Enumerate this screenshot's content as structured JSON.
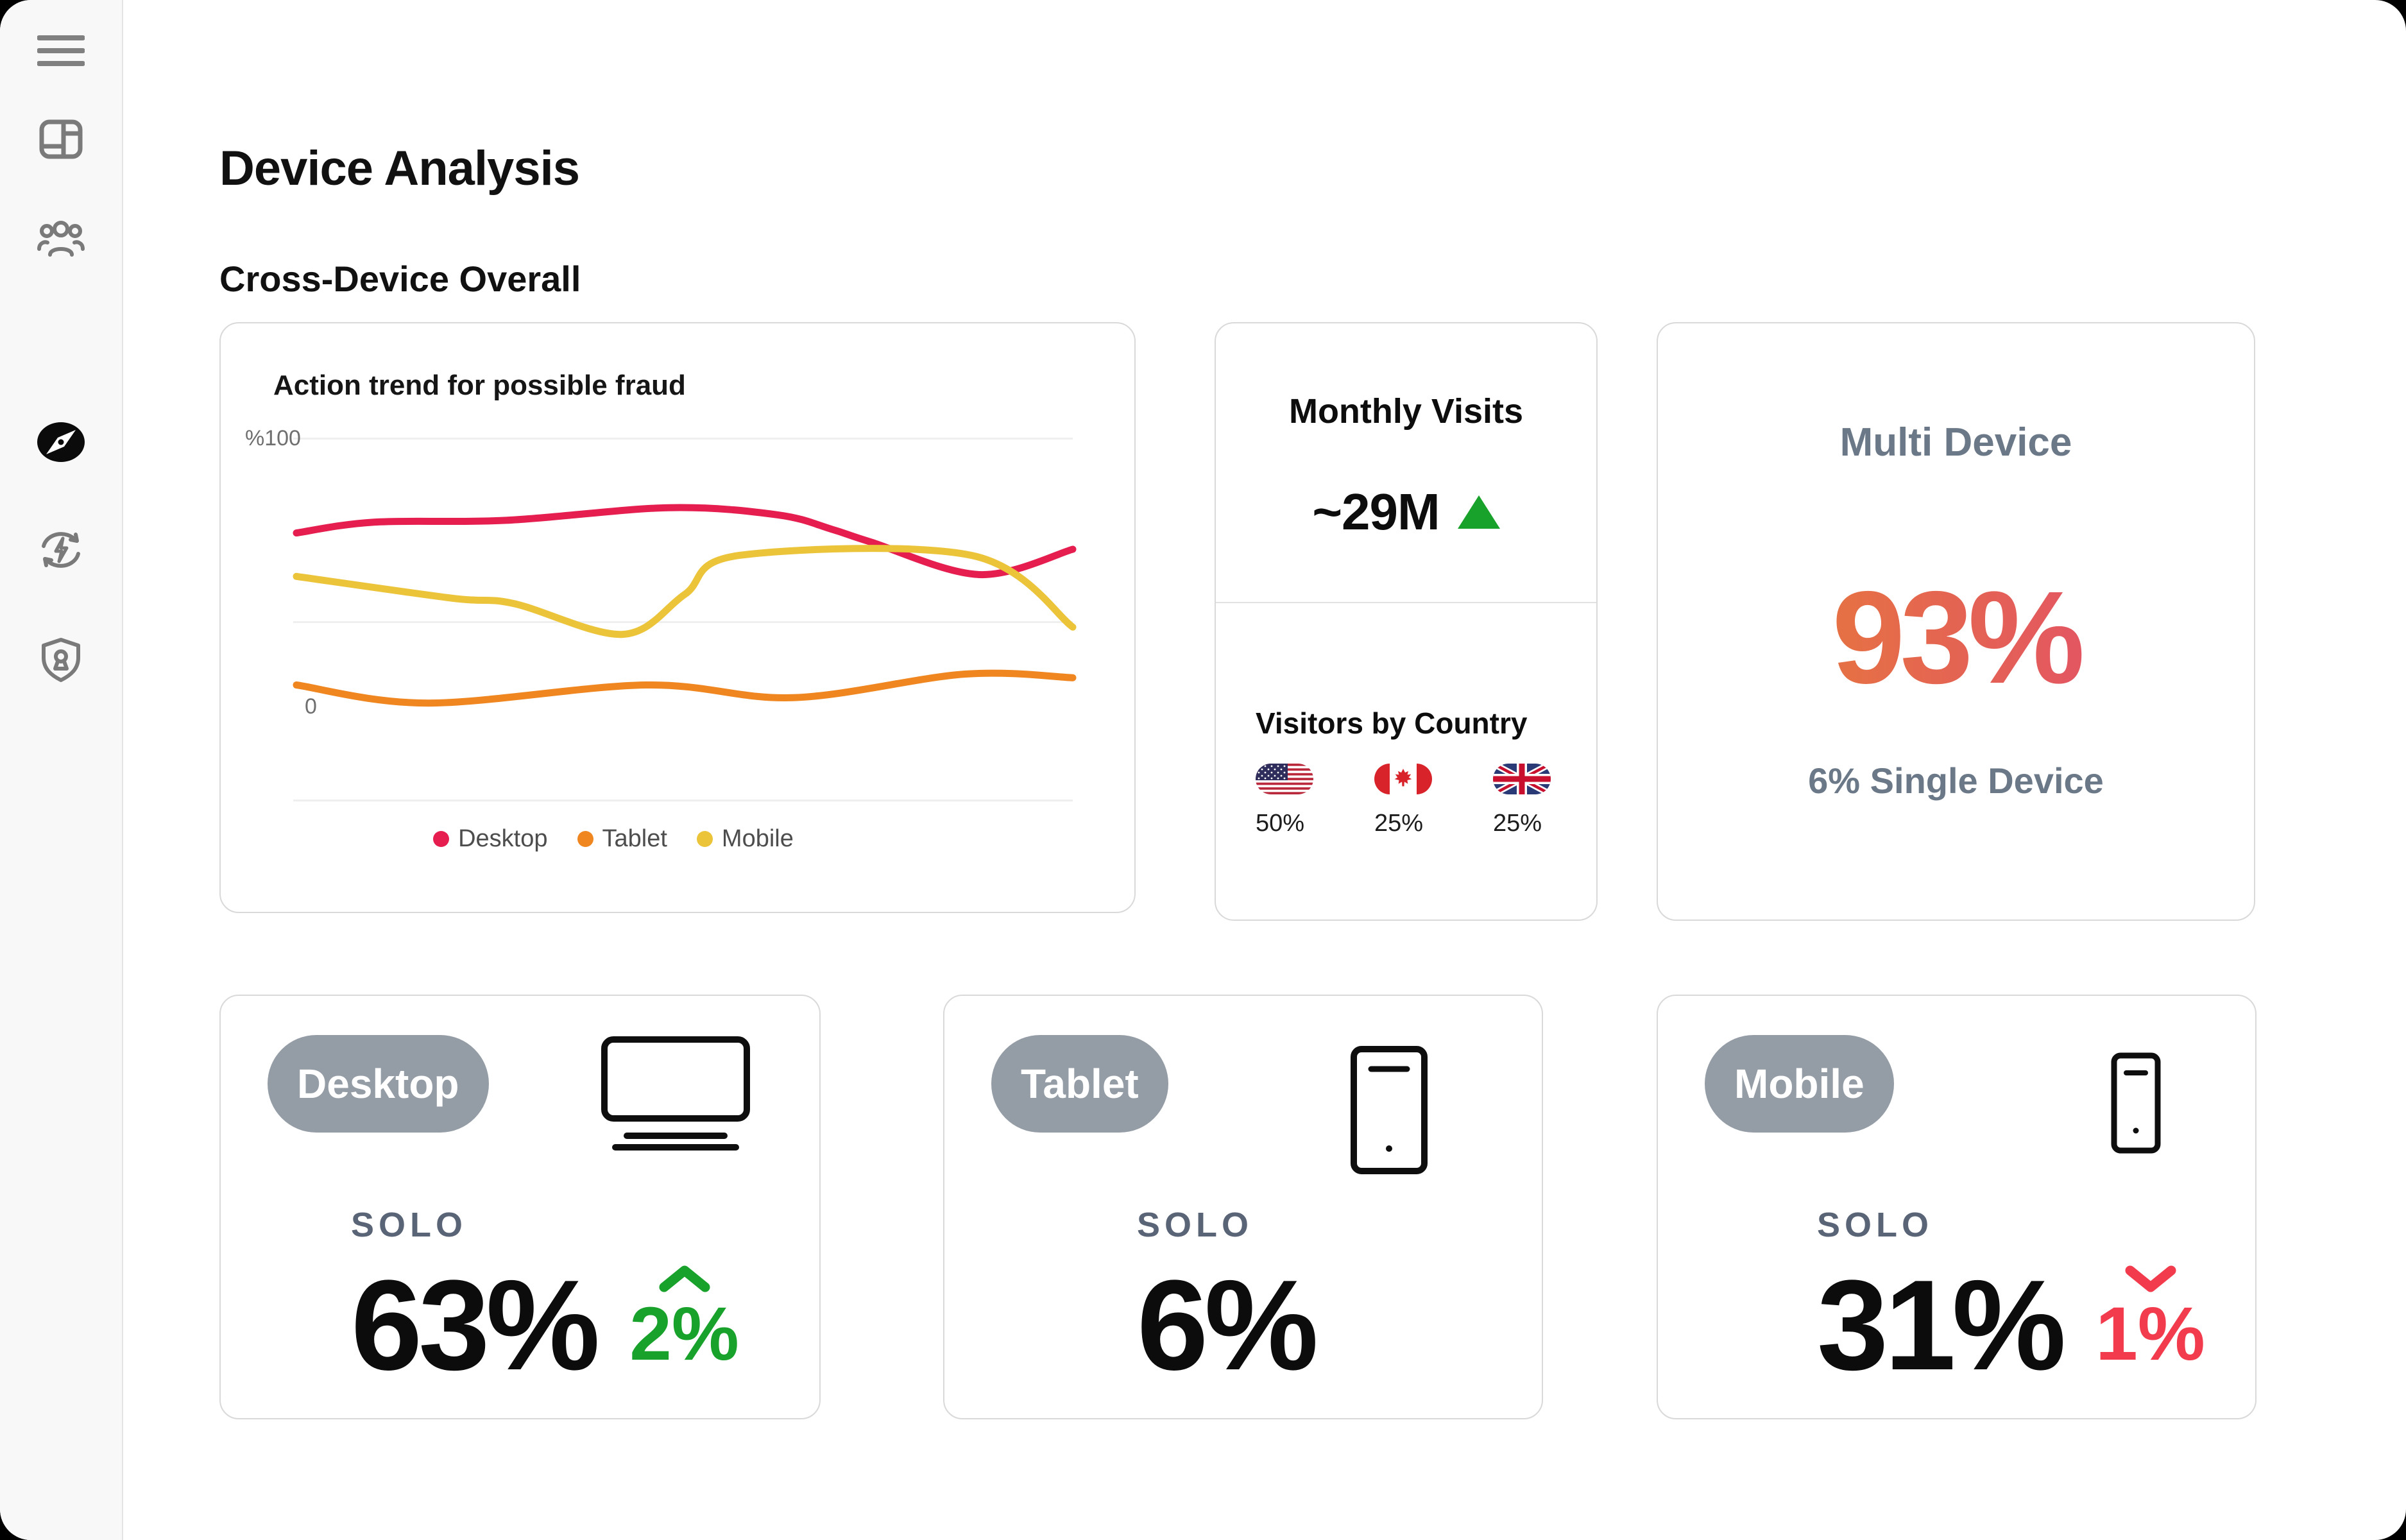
{
  "theme": {
    "accent_red": "#E61E50",
    "accent_orange": "#F0861F",
    "accent_yellow": "#ECC43A",
    "green": "#18A12B",
    "red_down": "#F23B4C",
    "pill": "#949CA5",
    "grad_from": "#E8842F",
    "grad_to": "#E14476"
  },
  "sidebar": {
    "items": [
      {
        "icon": "menu"
      },
      {
        "icon": "dashboard"
      },
      {
        "icon": "users"
      },
      {
        "icon": "compass",
        "active": true
      },
      {
        "icon": "sync"
      },
      {
        "icon": "shield-lock"
      }
    ]
  },
  "header": {
    "title": "Device Analysis",
    "subtitle": "Cross-Device Overall"
  },
  "fraud_chart": {
    "title": "Action trend for possible fraud",
    "y_top_label": "%100",
    "y_bottom_label": "0"
  },
  "chart_data": {
    "type": "line",
    "title": "Action trend for possible fraud",
    "ylabel": "%",
    "ylim": [
      0,
      100
    ],
    "y_tick_labels": [
      "%100",
      "0"
    ],
    "grid": "horizontal",
    "legend_position": "bottom-center",
    "x_unit": "percent-of-timeline",
    "series": [
      {
        "name": "Desktop",
        "color": "#E61E50",
        "points": [
          [
            0,
            74
          ],
          [
            10,
            77
          ],
          [
            27,
            77.5
          ],
          [
            48,
            81
          ],
          [
            62,
            79
          ],
          [
            69,
            75
          ],
          [
            74,
            71.5
          ],
          [
            88,
            62.5
          ],
          [
            100,
            69.5
          ]
        ]
      },
      {
        "name": "Tablet",
        "color": "#F0861F",
        "points": [
          [
            0,
            32
          ],
          [
            17,
            27
          ],
          [
            45,
            32
          ],
          [
            64,
            28.5
          ],
          [
            86,
            35
          ],
          [
            100,
            34
          ]
        ]
      },
      {
        "name": "Mobile",
        "color": "#ECC43A",
        "points": [
          [
            0,
            62
          ],
          [
            20,
            56
          ],
          [
            28,
            54.5
          ],
          [
            42,
            46
          ],
          [
            50,
            57
          ],
          [
            57,
            67.8
          ],
          [
            87,
            67.8
          ],
          [
            100,
            48
          ]
        ]
      }
    ]
  },
  "monthly_visits": {
    "title": "Monthly Visits",
    "value": "~29M",
    "trend": "up",
    "visitors_by_country": {
      "title": "Visitors by Country",
      "countries": [
        {
          "name": "United States",
          "share": "50%"
        },
        {
          "name": "Canada",
          "share": "25%"
        },
        {
          "name": "United Kingdom",
          "share": "25%"
        }
      ]
    }
  },
  "multi_device": {
    "title": "Multi Device",
    "value": "93%",
    "subtitle": "6% Single Device"
  },
  "device_cards": [
    {
      "label": "Desktop",
      "solo_label": "SOLO",
      "value": "63%",
      "change": "2%",
      "direction": "up"
    },
    {
      "label": "Tablet",
      "solo_label": "SOLO",
      "value": "6%",
      "change": "",
      "direction": ""
    },
    {
      "label": "Mobile",
      "solo_label": "SOLO",
      "value": "31%",
      "change": "1%",
      "direction": "down"
    }
  ]
}
